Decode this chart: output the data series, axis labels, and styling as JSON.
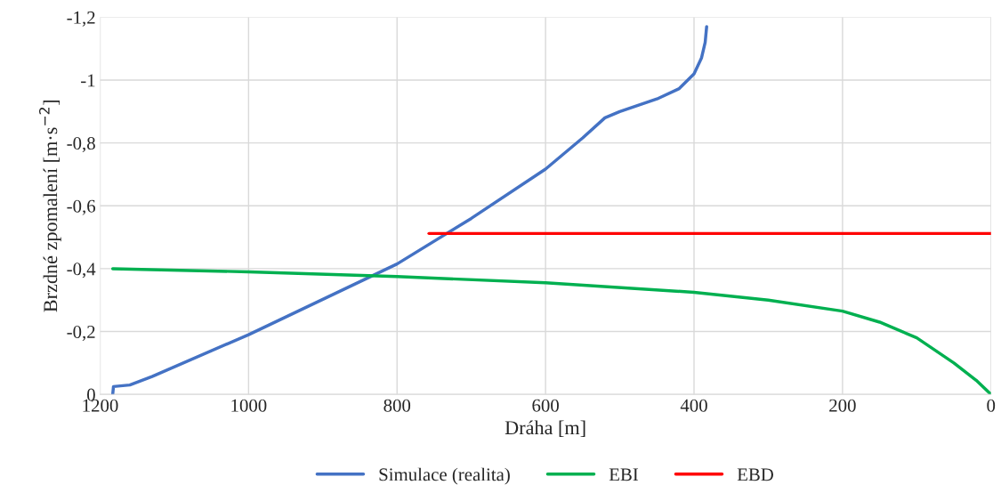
{
  "chart_data": {
    "type": "line",
    "xlabel": "Dráha [m]",
    "ylabel": "Brzdné zpomalení [m·s$^{−2}$]",
    "xlim": [
      1200,
      0
    ],
    "xticks": [
      1200,
      1000,
      800,
      600,
      400,
      200,
      0
    ],
    "ylim": [
      0,
      -1.2
    ],
    "yticks": [
      0,
      {
        "value": -0.2,
        "label": "-0,2"
      },
      {
        "value": -0.4,
        "label": "-0,4"
      },
      {
        "value": -0.6,
        "label": "-0,6"
      },
      {
        "value": -0.8,
        "label": "-0,8"
      },
      -1,
      {
        "value": -1.2,
        "label": "-1,2"
      }
    ],
    "grid": true,
    "legend": "bottom",
    "line_style": "solid",
    "marker": "none",
    "series": [
      {
        "name": "Simulace (realita)",
        "color": "#4472c4",
        "x": [
          1183,
          1182,
          1160,
          1130,
          1000,
          800,
          700,
          600,
          550,
          520,
          500,
          450,
          420,
          400,
          390,
          385,
          383
        ],
        "values": [
          0,
          -0.025,
          -0.03,
          -0.057,
          -0.19,
          -0.415,
          -0.56,
          -0.717,
          -0.816,
          -0.88,
          -0.9,
          -0.94,
          -0.973,
          -1.02,
          -1.07,
          -1.12,
          -1.17
        ]
      },
      {
        "name": "EBI",
        "color": "#00b050",
        "x": [
          1183,
          1000,
          800,
          600,
          400,
          300,
          200,
          150,
          100,
          50,
          20,
          0
        ],
        "values": [
          -0.4,
          -0.39,
          -0.375,
          -0.355,
          -0.325,
          -0.3,
          -0.265,
          -0.23,
          -0.18,
          -0.1,
          -0.045,
          0
        ]
      },
      {
        "name": "EBD",
        "color": "#ff0000",
        "x": [
          757,
          0
        ],
        "values": [
          -0.512,
          -0.512
        ]
      }
    ]
  }
}
